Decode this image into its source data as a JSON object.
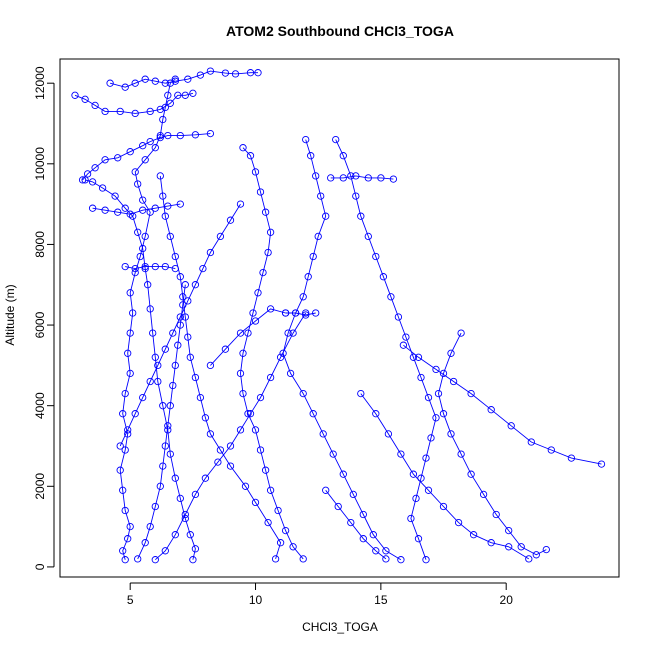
{
  "chart_data": {
    "type": "scatter",
    "title": "ATOM2 Southbound CHCl3_TOGA",
    "xlabel": "CHCl3_TOGA",
    "ylabel": "Altitude (m)",
    "xlim": [
      2.2,
      24.5
    ],
    "ylim": [
      -250,
      12600
    ],
    "xticks": [
      5,
      10,
      15,
      20
    ],
    "yticks": [
      0,
      2000,
      4000,
      6000,
      8000,
      10000,
      12000
    ],
    "point_marker": "open-circle",
    "connected": true,
    "color": "#0000ff",
    "grid": false,
    "series": [
      {
        "values": [
          [
            4.8,
            180
          ],
          [
            4.7,
            400
          ],
          [
            4.9,
            700
          ],
          [
            5.0,
            1000
          ],
          [
            4.8,
            1400
          ],
          [
            4.7,
            1900
          ],
          [
            4.6,
            2400
          ],
          [
            4.8,
            2900
          ],
          [
            4.9,
            3300
          ],
          [
            4.7,
            3800
          ],
          [
            4.8,
            4300
          ],
          [
            5.0,
            4800
          ],
          [
            4.9,
            5300
          ],
          [
            5.0,
            5800
          ],
          [
            5.1,
            6300
          ],
          [
            5.0,
            6800
          ],
          [
            5.2,
            7300
          ],
          [
            5.4,
            7700
          ],
          [
            5.6,
            8200
          ],
          [
            5.8,
            8800
          ],
          [
            5.5,
            9100
          ],
          [
            5.3,
            9500
          ],
          [
            5.2,
            9800
          ],
          [
            5.6,
            10100
          ],
          [
            6.0,
            10400
          ],
          [
            6.2,
            10700
          ],
          [
            6.3,
            11100
          ],
          [
            6.4,
            11400
          ],
          [
            6.5,
            11700
          ],
          [
            6.6,
            12000
          ],
          [
            6.8,
            12100
          ]
        ]
      },
      {
        "values": [
          [
            7.5,
            180
          ],
          [
            7.6,
            450
          ],
          [
            7.4,
            800
          ],
          [
            7.2,
            1200
          ],
          [
            7.0,
            1700
          ],
          [
            6.8,
            2200
          ],
          [
            6.6,
            2800
          ],
          [
            6.5,
            3400
          ],
          [
            6.3,
            4000
          ],
          [
            6.1,
            4600
          ],
          [
            6.0,
            5200
          ],
          [
            5.9,
            5800
          ],
          [
            5.8,
            6400
          ],
          [
            5.7,
            7000
          ],
          [
            5.6,
            7400
          ],
          [
            5.5,
            7900
          ],
          [
            5.3,
            8300
          ],
          [
            5.1,
            8700
          ],
          [
            4.8,
            8900
          ],
          [
            4.4,
            9200
          ],
          [
            3.9,
            9400
          ],
          [
            3.5,
            9550
          ],
          [
            3.2,
            9600
          ]
        ]
      },
      {
        "values": [
          [
            3.1,
            9600
          ],
          [
            3.3,
            9750
          ],
          [
            3.6,
            9900
          ],
          [
            4.0,
            10100
          ],
          [
            4.5,
            10150
          ],
          [
            5.0,
            10300
          ],
          [
            5.5,
            10450
          ],
          [
            5.8,
            10550
          ],
          [
            6.2,
            10650
          ],
          [
            6.5,
            10700
          ],
          [
            7.0,
            10700
          ],
          [
            7.6,
            10720
          ],
          [
            8.2,
            10750
          ]
        ]
      },
      {
        "values": [
          [
            2.8,
            11700
          ],
          [
            3.2,
            11600
          ],
          [
            3.6,
            11450
          ],
          [
            4.0,
            11300
          ],
          [
            4.6,
            11300
          ],
          [
            5.2,
            11250
          ],
          [
            5.8,
            11300
          ],
          [
            6.2,
            11350
          ],
          [
            6.6,
            11500
          ],
          [
            6.9,
            11700
          ],
          [
            7.2,
            11700
          ],
          [
            7.5,
            11750
          ]
        ]
      },
      {
        "values": [
          [
            4.2,
            12000
          ],
          [
            4.8,
            11900
          ],
          [
            5.2,
            12000
          ],
          [
            5.6,
            12100
          ],
          [
            6.0,
            12050
          ],
          [
            6.4,
            12000
          ],
          [
            6.8,
            12050
          ],
          [
            7.3,
            12100
          ],
          [
            7.8,
            12200
          ],
          [
            8.2,
            12300
          ],
          [
            8.8,
            12250
          ],
          [
            9.2,
            12230
          ],
          [
            9.8,
            12260
          ],
          [
            10.1,
            12260
          ]
        ]
      },
      {
        "values": [
          [
            3.5,
            8900
          ],
          [
            4.0,
            8850
          ],
          [
            4.5,
            8800
          ],
          [
            5.0,
            8750
          ],
          [
            5.5,
            8850
          ],
          [
            6.0,
            8900
          ],
          [
            6.5,
            8950
          ],
          [
            7.0,
            9000
          ]
        ]
      },
      {
        "values": [
          [
            4.8,
            7450
          ],
          [
            5.2,
            7400
          ],
          [
            5.6,
            7450
          ],
          [
            6.0,
            7450
          ],
          [
            6.4,
            7450
          ],
          [
            6.8,
            7400
          ]
        ]
      },
      {
        "values": [
          [
            10.8,
            200
          ],
          [
            11.0,
            600
          ],
          [
            10.5,
            1100
          ],
          [
            10.0,
            1600
          ],
          [
            9.6,
            2000
          ],
          [
            9.0,
            2500
          ],
          [
            8.6,
            2900
          ],
          [
            8.2,
            3300
          ],
          [
            8.0,
            3700
          ],
          [
            7.8,
            4200
          ],
          [
            7.6,
            4700
          ],
          [
            7.4,
            5200
          ],
          [
            7.3,
            5700
          ],
          [
            7.2,
            6200
          ],
          [
            7.1,
            6700
          ],
          [
            7.0,
            7200
          ],
          [
            6.8,
            7700
          ],
          [
            6.6,
            8200
          ],
          [
            6.4,
            8700
          ],
          [
            6.3,
            9200
          ],
          [
            6.2,
            9700
          ]
        ]
      },
      {
        "values": [
          [
            9.5,
            10400
          ],
          [
            9.8,
            10200
          ],
          [
            10.0,
            9800
          ],
          [
            10.2,
            9300
          ],
          [
            10.4,
            8800
          ],
          [
            10.6,
            8300
          ],
          [
            10.5,
            7800
          ],
          [
            10.3,
            7300
          ],
          [
            10.1,
            6800
          ],
          [
            9.9,
            6300
          ],
          [
            9.7,
            5800
          ],
          [
            9.5,
            5300
          ],
          [
            9.4,
            4800
          ],
          [
            9.5,
            4300
          ],
          [
            9.7,
            3800
          ],
          [
            10.0,
            3400
          ],
          [
            10.2,
            2900
          ],
          [
            10.4,
            2400
          ],
          [
            10.6,
            1900
          ],
          [
            10.9,
            1400
          ],
          [
            11.2,
            900
          ],
          [
            11.5,
            500
          ],
          [
            11.9,
            200
          ]
        ]
      },
      {
        "values": [
          [
            12.0,
            10600
          ],
          [
            12.2,
            10200
          ],
          [
            12.4,
            9700
          ],
          [
            12.6,
            9200
          ],
          [
            12.8,
            8700
          ],
          [
            12.5,
            8200
          ],
          [
            12.3,
            7700
          ],
          [
            12.1,
            7200
          ],
          [
            11.9,
            6700
          ],
          [
            11.6,
            6300
          ],
          [
            11.3,
            5800
          ],
          [
            11.1,
            5300
          ],
          [
            11.4,
            4800
          ],
          [
            11.9,
            4300
          ],
          [
            12.3,
            3800
          ],
          [
            12.7,
            3300
          ],
          [
            13.1,
            2800
          ],
          [
            13.5,
            2300
          ],
          [
            13.9,
            1800
          ],
          [
            14.3,
            1300
          ],
          [
            14.7,
            800
          ],
          [
            15.2,
            400
          ],
          [
            15.8,
            180
          ]
        ]
      },
      {
        "values": [
          [
            13.2,
            10600
          ],
          [
            13.5,
            10200
          ],
          [
            13.8,
            9700
          ],
          [
            14.0,
            9200
          ],
          [
            14.2,
            8700
          ],
          [
            14.5,
            8200
          ],
          [
            14.8,
            7700
          ],
          [
            15.1,
            7200
          ],
          [
            15.4,
            6700
          ],
          [
            15.7,
            6200
          ],
          [
            16.0,
            5700
          ],
          [
            16.3,
            5200
          ],
          [
            16.6,
            4700
          ],
          [
            16.9,
            4200
          ],
          [
            17.2,
            3700
          ],
          [
            17.0,
            3200
          ],
          [
            16.8,
            2700
          ],
          [
            16.6,
            2200
          ],
          [
            16.4,
            1700
          ],
          [
            16.2,
            1200
          ],
          [
            16.5,
            700
          ],
          [
            16.8,
            180
          ]
        ]
      },
      {
        "values": [
          [
            13.0,
            9650
          ],
          [
            13.5,
            9650
          ],
          [
            14.0,
            9700
          ],
          [
            14.5,
            9650
          ],
          [
            15.0,
            9650
          ],
          [
            15.5,
            9620
          ]
        ]
      },
      {
        "values": [
          [
            11.2,
            6300
          ],
          [
            11.6,
            6300
          ],
          [
            12.0,
            6250
          ],
          [
            12.4,
            6300
          ]
        ]
      },
      {
        "values": [
          [
            15.9,
            5500
          ],
          [
            16.5,
            5200
          ],
          [
            17.2,
            4900
          ],
          [
            17.9,
            4600
          ],
          [
            18.6,
            4300
          ],
          [
            19.4,
            3900
          ],
          [
            20.2,
            3500
          ],
          [
            21.0,
            3100
          ],
          [
            21.8,
            2900
          ],
          [
            22.6,
            2700
          ],
          [
            23.8,
            2550
          ]
        ]
      },
      {
        "values": [
          [
            18.2,
            5800
          ],
          [
            17.8,
            5300
          ],
          [
            17.5,
            4800
          ],
          [
            17.3,
            4300
          ],
          [
            17.5,
            3800
          ],
          [
            17.8,
            3300
          ],
          [
            18.2,
            2800
          ],
          [
            18.6,
            2300
          ],
          [
            19.1,
            1800
          ],
          [
            19.6,
            1300
          ],
          [
            20.1,
            900
          ],
          [
            20.6,
            500
          ],
          [
            21.2,
            300
          ],
          [
            21.6,
            430
          ]
        ]
      },
      {
        "values": [
          [
            14.2,
            4300
          ],
          [
            14.8,
            3800
          ],
          [
            15.3,
            3300
          ],
          [
            15.8,
            2800
          ],
          [
            16.3,
            2300
          ],
          [
            16.9,
            1900
          ],
          [
            17.5,
            1500
          ],
          [
            18.1,
            1100
          ],
          [
            18.7,
            800
          ],
          [
            19.4,
            600
          ],
          [
            20.1,
            500
          ],
          [
            20.9,
            200
          ]
        ]
      },
      {
        "values": [
          [
            8.2,
            5000
          ],
          [
            8.8,
            5400
          ],
          [
            9.4,
            5800
          ],
          [
            10.0,
            6100
          ],
          [
            10.6,
            6400
          ],
          [
            11.2,
            6300
          ]
        ]
      },
      {
        "values": [
          [
            12.8,
            1900
          ],
          [
            13.3,
            1500
          ],
          [
            13.8,
            1100
          ],
          [
            14.3,
            700
          ],
          [
            14.8,
            400
          ],
          [
            15.2,
            200
          ]
        ]
      },
      {
        "values": [
          [
            6.0,
            180
          ],
          [
            6.4,
            400
          ],
          [
            6.8,
            800
          ],
          [
            7.2,
            1300
          ],
          [
            7.6,
            1800
          ],
          [
            8.0,
            2200
          ],
          [
            8.5,
            2600
          ],
          [
            9.0,
            3000
          ],
          [
            9.4,
            3400
          ],
          [
            9.8,
            3800
          ],
          [
            10.2,
            4200
          ],
          [
            10.6,
            4700
          ],
          [
            11.0,
            5200
          ],
          [
            11.5,
            5800
          ],
          [
            12.0,
            6300
          ]
        ]
      },
      {
        "values": [
          [
            5.3,
            200
          ],
          [
            5.6,
            600
          ],
          [
            5.8,
            1000
          ],
          [
            6.0,
            1500
          ],
          [
            6.2,
            2000
          ],
          [
            6.3,
            2500
          ],
          [
            6.4,
            3000
          ],
          [
            6.5,
            3500
          ],
          [
            6.6,
            4000
          ],
          [
            6.7,
            4500
          ],
          [
            6.8,
            5000
          ],
          [
            6.9,
            5500
          ],
          [
            7.0,
            6000
          ],
          [
            7.1,
            6500
          ],
          [
            7.2,
            7000
          ]
        ]
      },
      {
        "values": [
          [
            4.6,
            3000
          ],
          [
            4.9,
            3400
          ],
          [
            5.2,
            3800
          ],
          [
            5.5,
            4200
          ],
          [
            5.8,
            4600
          ],
          [
            6.1,
            5000
          ],
          [
            6.4,
            5400
          ],
          [
            6.7,
            5800
          ],
          [
            7.0,
            6200
          ],
          [
            7.3,
            6600
          ],
          [
            7.6,
            7000
          ],
          [
            7.9,
            7400
          ],
          [
            8.2,
            7800
          ],
          [
            8.6,
            8200
          ],
          [
            9.0,
            8600
          ],
          [
            9.4,
            9000
          ]
        ]
      }
    ]
  }
}
